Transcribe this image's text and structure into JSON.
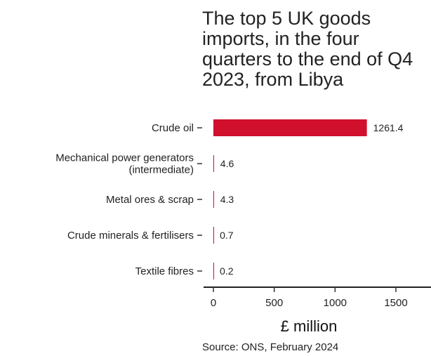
{
  "chart_data": {
    "type": "bar",
    "orientation": "horizontal",
    "title": "The top 5 UK goods imports, in the four quarters to the end of Q4 2023, from Libya",
    "categories": [
      [
        "Crude oil"
      ],
      [
        "Mechanical power generators",
        "(intermediate)"
      ],
      [
        "Metal ores & scrap"
      ],
      [
        "Crude minerals & fertilisers"
      ],
      [
        "Textile fibres"
      ]
    ],
    "values": [
      1261.4,
      4.6,
      4.3,
      0.7,
      0.2
    ],
    "value_labels": [
      "1261.4",
      "4.6",
      "4.3",
      "0.7",
      "0.2"
    ],
    "xlabel": "£ million",
    "xlim": [
      0,
      1650
    ],
    "xticks": [
      0,
      500,
      1000,
      1500
    ],
    "bar_color": "#d0102c",
    "grid": false,
    "source": "Source: ONS, February 2024"
  }
}
